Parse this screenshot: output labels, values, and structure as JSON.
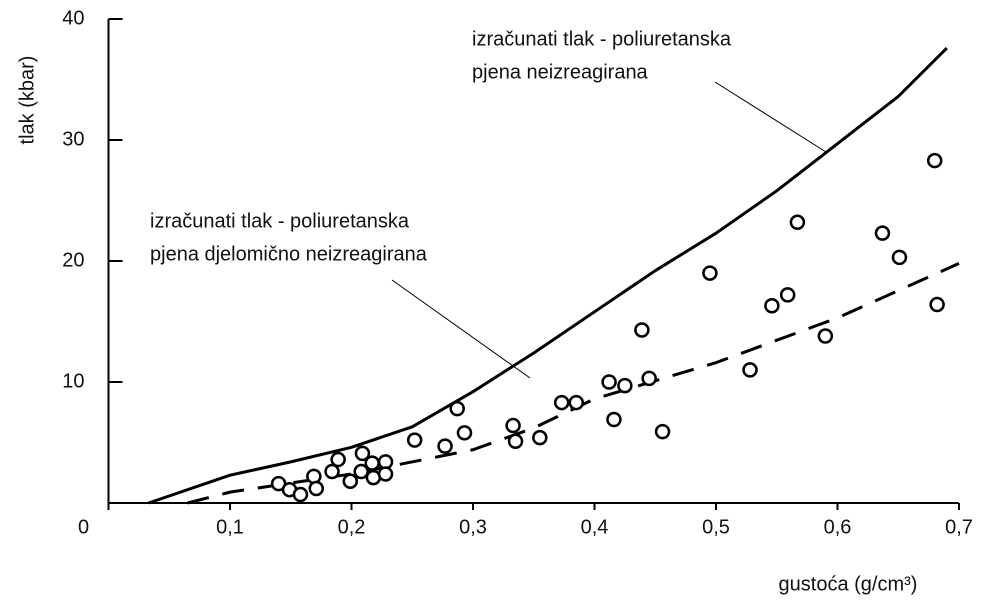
{
  "chart_data": {
    "type": "line",
    "xlabel": "gustoća (g/cm³)",
    "ylabel": "tlak (kbar)",
    "annotations": [
      {
        "lines": [
          "izračunati tlak - poliuretanska",
          "pjena neizreagirana"
        ]
      },
      {
        "lines": [
          "izračunati tlak - poliuretanska",
          "pjena djelomično neizreagirana"
        ]
      }
    ],
    "xlim": [
      0,
      0.7
    ],
    "ylim": [
      0,
      40
    ],
    "xticks": [
      0,
      {
        "value": 0.1,
        "label": "0,1"
      },
      {
        "value": 0.2,
        "label": "0,2"
      },
      {
        "value": 0.3,
        "label": "0,3"
      },
      {
        "value": 0.4,
        "label": "0,4"
      },
      {
        "value": 0.5,
        "label": "0,5"
      },
      {
        "value": 0.6,
        "label": "0,6"
      },
      {
        "value": 0.7,
        "label": "0,7"
      }
    ],
    "yticks": [
      10,
      20,
      30,
      40
    ],
    "series": [
      {
        "type": "line",
        "dashed": false,
        "color": "#000000",
        "x": [
          0.033,
          0.1,
          0.15,
          0.2,
          0.25,
          0.3,
          0.35,
          0.4,
          0.45,
          0.5,
          0.55,
          0.6,
          0.65,
          0.69
        ],
        "values": [
          0,
          2.3,
          3.4,
          4.6,
          6.3,
          9.2,
          12.4,
          15.8,
          19.2,
          22.3,
          25.8,
          29.7,
          33.6,
          37.6
        ]
      },
      {
        "type": "line",
        "dashed": true,
        "color": "#000000",
        "x": [
          0.065,
          0.1,
          0.2,
          0.3,
          0.35,
          0.4,
          0.5,
          0.6,
          0.7
        ],
        "values": [
          0,
          0.9,
          2.4,
          4.4,
          6.2,
          8.6,
          11.6,
          15.3,
          19.8
        ]
      },
      {
        "type": "scatter",
        "color": "#000000",
        "x": [
          0.14,
          0.149,
          0.158,
          0.169,
          0.171,
          0.184,
          0.189,
          0.199,
          0.209,
          0.208,
          0.217,
          0.218,
          0.228,
          0.228,
          0.252,
          0.277,
          0.287,
          0.293,
          0.333,
          0.335,
          0.355,
          0.373,
          0.385,
          0.412,
          0.416,
          0.425,
          0.439,
          0.445,
          0.456,
          0.495,
          0.528,
          0.546,
          0.559,
          0.567,
          0.59,
          0.637,
          0.651,
          0.68,
          0.682
        ],
        "values": [
          1.6,
          1.1,
          0.7,
          2.2,
          1.2,
          2.6,
          3.6,
          1.8,
          4.1,
          2.6,
          3.3,
          2.1,
          3.4,
          2.4,
          5.2,
          4.7,
          7.8,
          5.8,
          6.4,
          5.1,
          5.4,
          8.3,
          8.3,
          10,
          6.9,
          9.7,
          14.3,
          10.3,
          5.9,
          19,
          11,
          16.3,
          17.2,
          23.2,
          13.8,
          22.3,
          20.3,
          28.3,
          16.4
        ]
      }
    ]
  }
}
